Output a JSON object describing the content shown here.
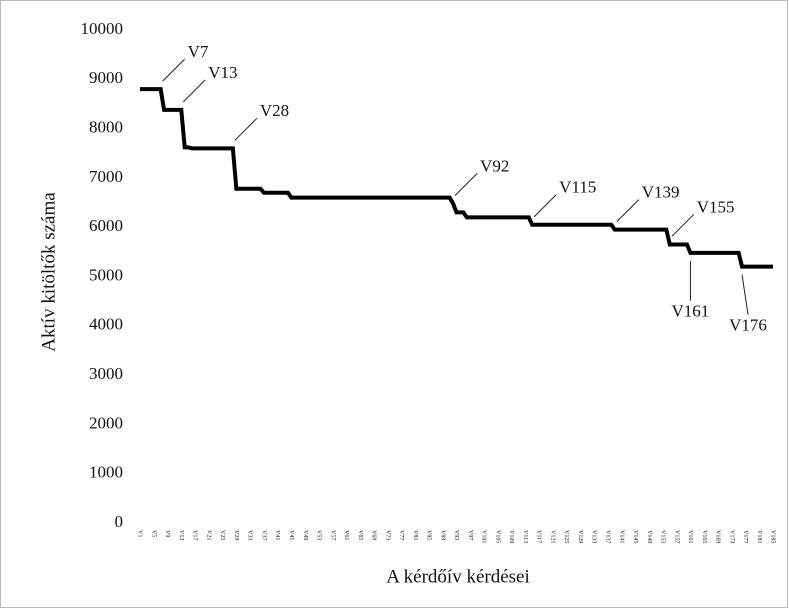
{
  "chart_data": {
    "type": "line",
    "y_label": "Aktív kitöltők száma",
    "x_label": "A kérdőív kérdései",
    "categories": [
      "V1",
      null,
      null,
      null,
      "V5",
      null,
      null,
      null,
      "V9",
      null,
      null,
      null,
      "V13",
      null,
      null,
      null,
      "V17",
      null,
      null,
      null,
      "V21",
      null,
      null,
      null,
      "V25",
      null,
      null,
      null,
      "V29",
      null,
      null,
      null,
      "V33",
      null,
      null,
      null,
      "V37",
      null,
      null,
      null,
      "V41",
      null,
      null,
      null,
      "V45",
      null,
      null,
      null,
      "V49",
      null,
      null,
      null,
      "V53",
      null,
      null,
      null,
      "V57",
      null,
      null,
      null,
      "V61",
      null,
      null,
      null,
      "V65",
      null,
      null,
      null,
      "V69",
      null,
      null,
      null,
      "V73",
      null,
      null,
      null,
      "V77",
      null,
      null,
      null,
      "V81",
      null,
      null,
      null,
      "V85",
      null,
      null,
      null,
      "V89",
      null,
      null,
      null,
      "V93",
      null,
      null,
      null,
      "V97",
      null,
      null,
      null,
      "V101",
      null,
      null,
      null,
      "V105",
      null,
      null,
      null,
      "V109",
      null,
      null,
      null,
      "V113",
      null,
      null,
      null,
      "V117",
      null,
      null,
      null,
      "V121",
      null,
      null,
      null,
      "V125",
      null,
      null,
      null,
      "V129",
      null,
      null,
      null,
      "V133",
      null,
      null,
      null,
      "V137",
      null,
      null,
      null,
      "V141",
      null,
      null,
      null,
      "V145",
      null,
      null,
      null,
      "V149",
      null,
      null,
      null,
      "V153",
      null,
      null,
      null,
      "V157",
      null,
      null,
      null,
      "V161",
      null,
      null,
      null,
      "V165",
      null,
      null,
      null,
      "V169",
      null,
      null,
      null,
      "V173",
      null,
      null,
      null,
      "V177",
      null,
      null,
      null,
      "V181",
      null,
      null,
      null,
      "V185"
    ],
    "values": [
      8800,
      8800,
      8800,
      8800,
      8800,
      8800,
      8800,
      8380,
      8380,
      8380,
      8380,
      8380,
      8380,
      7620,
      7620,
      7600,
      7600,
      7600,
      7600,
      7600,
      7600,
      7600,
      7600,
      7600,
      7600,
      7600,
      7600,
      7600,
      6780,
      6780,
      6780,
      6780,
      6780,
      6780,
      6780,
      6780,
      6700,
      6700,
      6700,
      6700,
      6700,
      6700,
      6700,
      6700,
      6600,
      6600,
      6600,
      6600,
      6600,
      6600,
      6600,
      6600,
      6600,
      6600,
      6600,
      6600,
      6600,
      6600,
      6600,
      6600,
      6600,
      6600,
      6600,
      6600,
      6600,
      6600,
      6600,
      6600,
      6600,
      6600,
      6600,
      6600,
      6600,
      6600,
      6600,
      6600,
      6600,
      6600,
      6600,
      6600,
      6600,
      6600,
      6600,
      6600,
      6600,
      6600,
      6600,
      6600,
      6600,
      6600,
      6600,
      6480,
      6300,
      6300,
      6300,
      6200,
      6200,
      6200,
      6200,
      6200,
      6200,
      6200,
      6200,
      6200,
      6200,
      6200,
      6200,
      6200,
      6200,
      6200,
      6200,
      6200,
      6200,
      6200,
      6050,
      6050,
      6050,
      6050,
      6050,
      6050,
      6050,
      6050,
      6050,
      6050,
      6050,
      6050,
      6050,
      6050,
      6050,
      6050,
      6050,
      6050,
      6050,
      6050,
      6050,
      6050,
      6050,
      6050,
      5950,
      5950,
      5950,
      5950,
      5950,
      5950,
      5950,
      5950,
      5950,
      5950,
      5950,
      5950,
      5950,
      5950,
      5950,
      5950,
      5650,
      5650,
      5650,
      5650,
      5650,
      5650,
      5480,
      5480,
      5480,
      5480,
      5480,
      5480,
      5480,
      5480,
      5480,
      5480,
      5480,
      5480,
      5480,
      5480,
      5480,
      5200,
      5200,
      5200,
      5200,
      5200,
      5200,
      5200,
      5200,
      5200,
      5200
    ],
    "color": "#000000",
    "ylim": [
      0,
      10000
    ],
    "yticks": [
      0,
      1000,
      2000,
      3000,
      4000,
      5000,
      6000,
      7000,
      8000,
      9000,
      10000
    ],
    "annotations": [
      "V7",
      "V13",
      "V28",
      "V92",
      "V115",
      "V139",
      "V155",
      "V161",
      "V176"
    ]
  }
}
